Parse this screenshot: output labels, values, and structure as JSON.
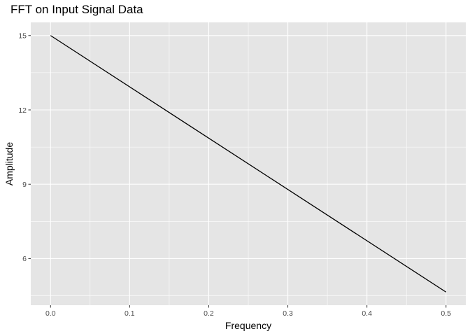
{
  "chart_data": {
    "type": "line",
    "title": "FFT on Input Signal Data",
    "xlabel": "Frequency",
    "ylabel": "Amplitude",
    "x": [
      0.0,
      0.5
    ],
    "series": [
      {
        "values": [
          15.0,
          4.65
        ],
        "color": "#000000"
      }
    ],
    "xlim": [
      -0.025,
      0.525
    ],
    "ylim": [
      4.12,
      15.53
    ],
    "x_ticks": [
      0.0,
      0.1,
      0.2,
      0.3,
      0.4,
      0.5
    ],
    "x_tick_labels": [
      "0.0",
      "0.1",
      "0.2",
      "0.3",
      "0.4",
      "0.5"
    ],
    "y_ticks": [
      6,
      9,
      12,
      15
    ],
    "y_tick_labels": [
      "6",
      "9",
      "12",
      "15"
    ],
    "grid": true,
    "legend": "none",
    "panel_background": "#e5e5e5",
    "grid_color": "#ffffff"
  }
}
